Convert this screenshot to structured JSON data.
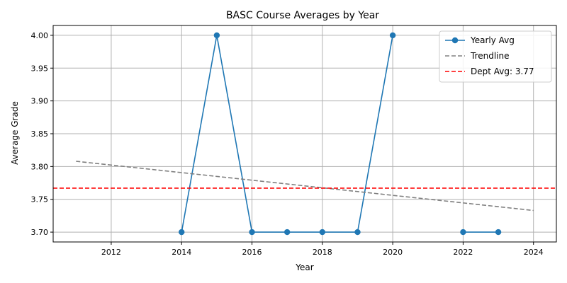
{
  "chart_data": {
    "type": "line",
    "title": "BASC Course Averages by Year",
    "xlabel": "Year",
    "ylabel": "Average Grade",
    "xlim": [
      2010.35,
      2024.65
    ],
    "ylim": [
      3.685,
      4.015
    ],
    "xticks": [
      "2012",
      "2014",
      "2016",
      "2018",
      "2020",
      "2022",
      "2024"
    ],
    "yticks": [
      "3.70",
      "3.75",
      "3.80",
      "3.85",
      "3.90",
      "3.95",
      "4.00"
    ],
    "grid": true,
    "legend_position": "top-right",
    "series": [
      {
        "name": "Yearly Avg",
        "color": "#1f77b4",
        "style": "solid-markers",
        "x": [
          2014,
          2015,
          2016,
          2017,
          2018,
          2019,
          2020
        ],
        "y": [
          3.7,
          4.0,
          3.7,
          3.7,
          3.7,
          3.7,
          4.0
        ]
      },
      {
        "name": "Yearly Avg",
        "color": "#1f77b4",
        "style": "solid-markers",
        "x": [
          2022,
          2023
        ],
        "y": [
          3.7,
          3.7
        ]
      },
      {
        "name": "Trendline",
        "color": "#808080",
        "style": "dashed",
        "x": [
          2011,
          2024
        ],
        "y": [
          3.808,
          3.733
        ]
      },
      {
        "name": "Dept Avg: 3.77",
        "color": "#ff0000",
        "style": "dashed-full",
        "y": [
          3.767
        ]
      }
    ],
    "legend": [
      {
        "label": "Yearly Avg",
        "color": "#1f77b4",
        "style": "solid-markers"
      },
      {
        "label": "Trendline",
        "color": "#808080",
        "style": "dashed"
      },
      {
        "label": "Dept Avg: 3.77",
        "color": "#ff0000",
        "style": "dashed"
      }
    ]
  }
}
